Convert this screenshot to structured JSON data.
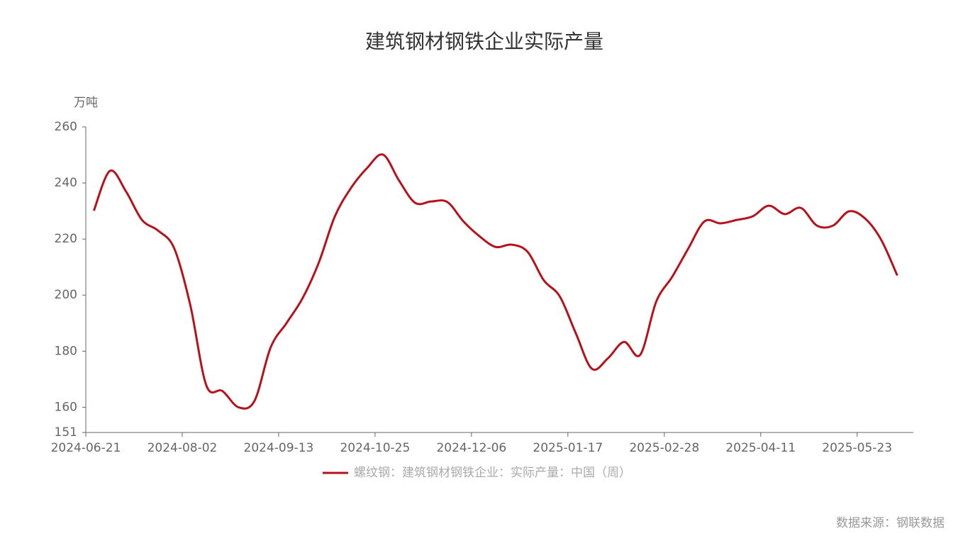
{
  "chart_data": {
    "type": "line",
    "title": "建筑钢材钢铁企业实际产量",
    "y_label": "万吨",
    "source": "数据来源：钢联数据",
    "categories": [
      "2024-06-21",
      null,
      null,
      null,
      null,
      null,
      "2024-08-02",
      null,
      null,
      null,
      null,
      null,
      "2024-09-13",
      null,
      null,
      null,
      null,
      null,
      "2024-10-25",
      null,
      null,
      null,
      null,
      null,
      "2024-12-06",
      null,
      null,
      null,
      null,
      null,
      "2025-01-17",
      null,
      null,
      null,
      null,
      null,
      "2025-02-28",
      null,
      null,
      null,
      null,
      null,
      "2025-04-11",
      null,
      null,
      null,
      null,
      null,
      "2025-05-23",
      null,
      null
    ],
    "series": [
      {
        "name": "螺纹钢：建筑钢材钢铁企业：实际产量：中国（周）",
        "color": "#b5121b",
        "values": [
          230.1,
          244.3,
          237,
          226.8,
          223,
          216.7,
          196.5,
          167.8,
          165.8,
          160,
          162.3,
          181.3,
          190.1,
          199,
          211.6,
          228.1,
          238.2,
          245.3,
          250.1,
          240.8,
          232.9,
          233.4,
          233.2,
          226.3,
          221,
          217.2,
          218,
          215.4,
          205.3,
          199.5,
          186.3,
          173.7,
          177.5,
          183.3,
          178.7,
          197.7,
          206.6,
          216.7,
          226.3,
          225.6,
          226.8,
          228.1,
          231.9,
          228.9,
          231.1,
          224.8,
          224.8,
          229.9,
          227.3,
          219.7,
          207
        ]
      }
    ],
    "ylim": [
      151,
      260
    ],
    "yticks": [
      151,
      160,
      180,
      200,
      220,
      240,
      260
    ],
    "legend": "bottom"
  }
}
